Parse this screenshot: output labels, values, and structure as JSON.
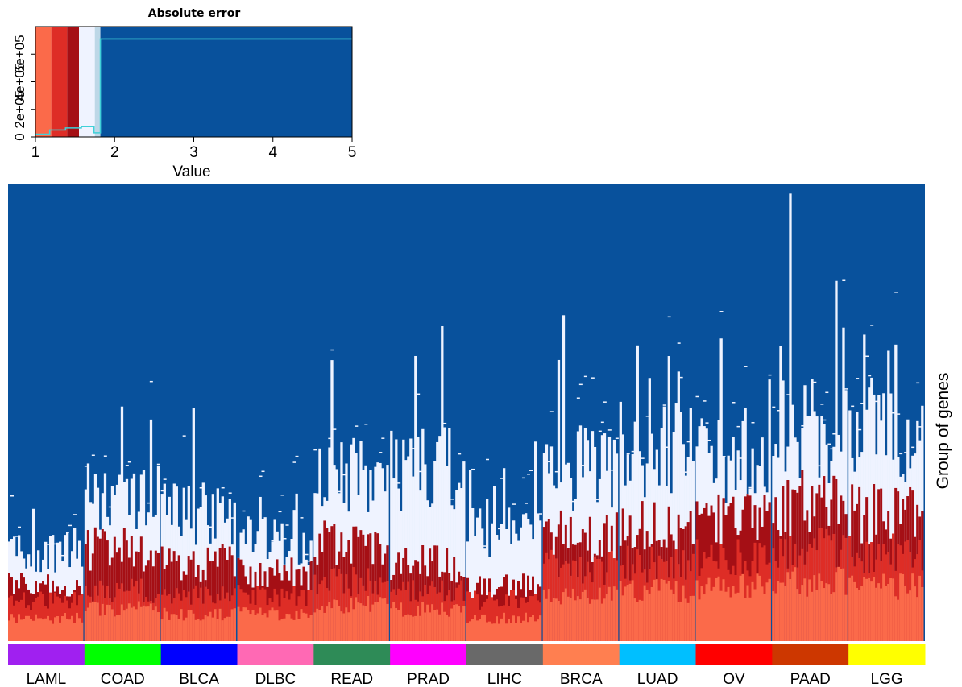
{
  "chart_data": [
    {
      "type": "area",
      "role": "color-key",
      "title": "Absolute error",
      "xlabel": "Value",
      "ylabel": "",
      "xlim": [
        1,
        5
      ],
      "ylim": [
        0,
        800000
      ],
      "x_ticks": [
        1,
        2,
        3,
        4,
        5
      ],
      "x_tick_labels": [
        "1",
        "2",
        "3",
        "4",
        "5"
      ],
      "y_ticks": [
        0,
        200000,
        400000,
        600000
      ],
      "y_tick_labels": [
        "0",
        "2e+05",
        "4e+05",
        "6e+05"
      ],
      "bins": [
        {
          "from": 1.0,
          "to": 1.2,
          "color": "#fb6a4a"
        },
        {
          "from": 1.2,
          "to": 1.4,
          "color": "#de2d26"
        },
        {
          "from": 1.4,
          "to": 1.55,
          "color": "#a50f15"
        },
        {
          "from": 1.55,
          "to": 1.75,
          "color": "#eff3ff"
        },
        {
          "from": 1.75,
          "to": 1.82,
          "color": "#bdd7e7"
        },
        {
          "from": 1.82,
          "to": 5.0,
          "color": "#08519c"
        }
      ],
      "histogram_line": {
        "color": "#3fd0d8",
        "x": [
          1.0,
          1.18,
          1.18,
          1.38,
          1.38,
          1.58,
          1.58,
          1.74,
          1.74,
          1.82,
          1.82,
          5.0
        ],
        "y": [
          20000,
          20000,
          50000,
          50000,
          65000,
          65000,
          75000,
          75000,
          30000,
          30000,
          710000,
          710000
        ]
      }
    },
    {
      "type": "heatmap",
      "role": "main",
      "ylabel": "Group of genes",
      "sample_groups": [
        {
          "label": "LAML",
          "color": "#a020f0"
        },
        {
          "label": "COAD",
          "color": "#00ff00"
        },
        {
          "label": "BLCA",
          "color": "#0000ff"
        },
        {
          "label": "DLBC",
          "color": "#ff69b4"
        },
        {
          "label": "READ",
          "color": "#2e8b57"
        },
        {
          "label": "PRAD",
          "color": "#ff00ff"
        },
        {
          "label": "LIHC",
          "color": "#696969"
        },
        {
          "label": "BRCA",
          "color": "#ff7f50"
        },
        {
          "label": "LUAD",
          "color": "#00bfff"
        },
        {
          "label": "OV",
          "color": "#ff0000"
        },
        {
          "label": "PAAD",
          "color": "#cd3700"
        },
        {
          "label": "LGG",
          "color": "#ffff00"
        }
      ],
      "level_colors": [
        "#fb6a4a",
        "#de2d26",
        "#a50f15",
        "#eff3ff",
        "#08519c"
      ],
      "group_profiles": [
        {
          "label": "LAML",
          "l1": 0.05,
          "l2": 0.09,
          "l3": 0.12,
          "l4": 0.2
        },
        {
          "label": "COAD",
          "l1": 0.07,
          "l2": 0.11,
          "l3": 0.2,
          "l4": 0.32
        },
        {
          "label": "BLCA",
          "l1": 0.06,
          "l2": 0.1,
          "l3": 0.17,
          "l4": 0.28
        },
        {
          "label": "DLBC",
          "l1": 0.06,
          "l2": 0.1,
          "l3": 0.15,
          "l4": 0.22
        },
        {
          "label": "READ",
          "l1": 0.08,
          "l2": 0.13,
          "l3": 0.22,
          "l4": 0.36
        },
        {
          "label": "PRAD",
          "l1": 0.07,
          "l2": 0.11,
          "l3": 0.17,
          "l4": 0.38
        },
        {
          "label": "LIHC",
          "l1": 0.05,
          "l2": 0.09,
          "l3": 0.12,
          "l4": 0.24
        },
        {
          "label": "BRCA",
          "l1": 0.1,
          "l2": 0.16,
          "l3": 0.23,
          "l4": 0.38
        },
        {
          "label": "LUAD",
          "l1": 0.11,
          "l2": 0.17,
          "l3": 0.25,
          "l4": 0.42
        },
        {
          "label": "OV",
          "l1": 0.12,
          "l2": 0.18,
          "l3": 0.27,
          "l4": 0.4
        },
        {
          "label": "PAAD",
          "l1": 0.13,
          "l2": 0.2,
          "l3": 0.3,
          "l4": 0.46
        },
        {
          "label": "LGG",
          "l1": 0.12,
          "l2": 0.19,
          "l3": 0.28,
          "l4": 0.44
        }
      ]
    }
  ]
}
